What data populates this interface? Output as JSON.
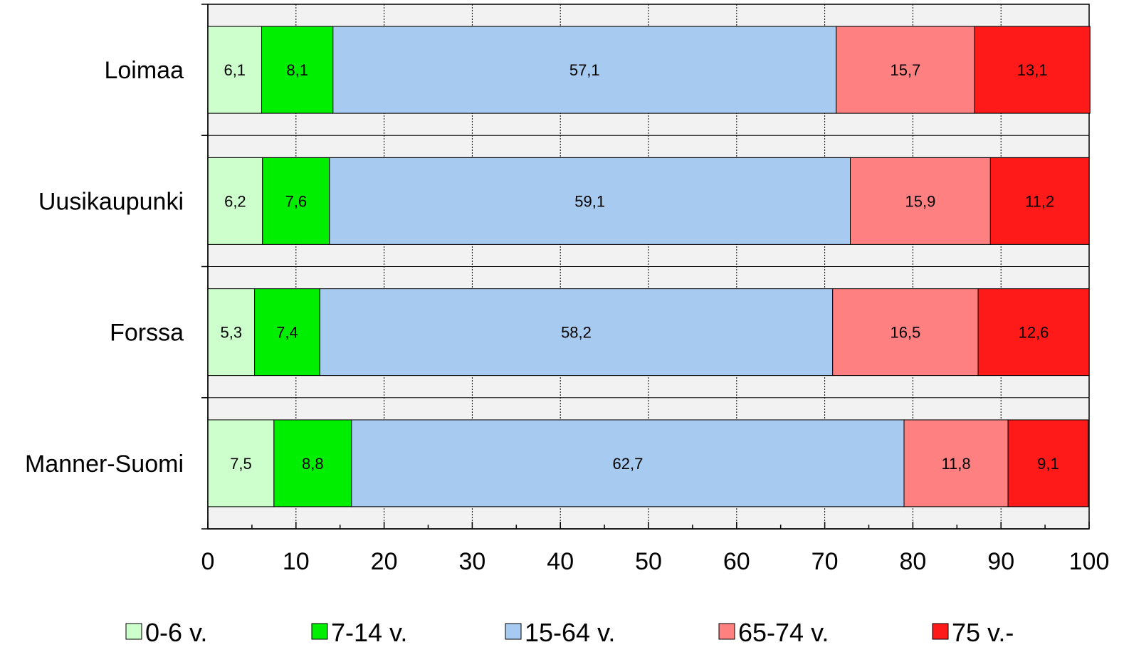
{
  "chart_data": {
    "type": "bar",
    "orientation": "horizontal",
    "stacked": true,
    "categories": [
      "Loimaa",
      "Uusikaupunki",
      "Forssa",
      "Manner-Suomi"
    ],
    "series": [
      {
        "name": "0-6 v.",
        "color": "#ccffcc",
        "values": [
          6.1,
          6.2,
          5.3,
          7.5
        ],
        "labels": [
          "6,1",
          "6,2",
          "5,3",
          "7,5"
        ]
      },
      {
        "name": "7-14 v.",
        "color": "#00ee00",
        "values": [
          8.1,
          7.6,
          7.4,
          8.8
        ],
        "labels": [
          "8,1",
          "7,6",
          "7,4",
          "8,8"
        ]
      },
      {
        "name": "15-64 v.",
        "color": "#a6caf0",
        "values": [
          57.1,
          59.1,
          58.2,
          62.7
        ],
        "labels": [
          "57,1",
          "59,1",
          "58,2",
          "62,7"
        ]
      },
      {
        "name": "65-74 v.",
        "color": "#ff8080",
        "values": [
          15.7,
          15.9,
          16.5,
          11.8
        ],
        "labels": [
          "15,7",
          "15,9",
          "16,5",
          "11,8"
        ]
      },
      {
        "name": "75 v.-",
        "color": "#ff1a1a",
        "values": [
          13.1,
          11.2,
          12.6,
          9.1
        ],
        "labels": [
          "13,1",
          "11,2",
          "12,6",
          "9,1"
        ]
      }
    ],
    "xlim": [
      0,
      100
    ],
    "xticks": [
      "0",
      "10",
      "20",
      "30",
      "40",
      "50",
      "60",
      "70",
      "80",
      "90",
      "100"
    ],
    "grid": true,
    "plot_background": "#f2f2f2",
    "legend_position": "bottom"
  }
}
